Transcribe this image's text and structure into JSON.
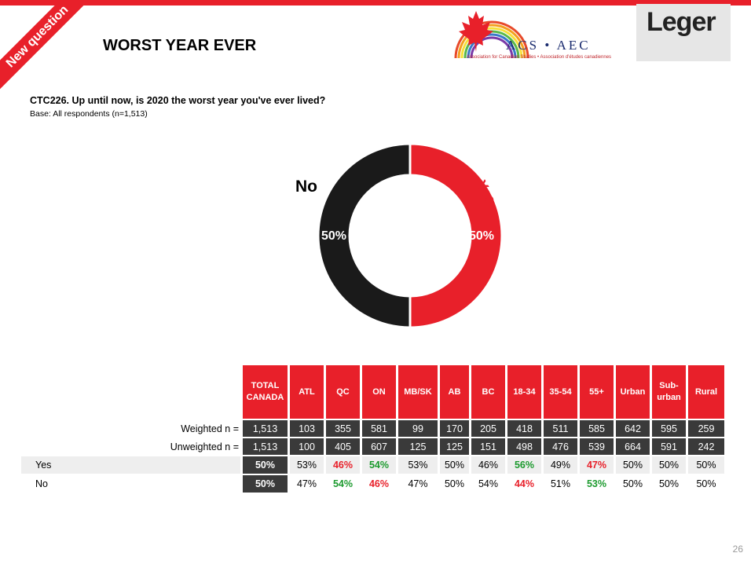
{
  "header": {
    "ribbon": "New question",
    "title": "WORST YEAR EVER",
    "acs_logo_text": "ACS • AEC",
    "acs_logo_sub": "Association for Canadian Studies • Association d'études canadiennes",
    "leger_logo": "Leger"
  },
  "question": "CTC226. Up until now, is 2020 the worst year you've ever lived?",
  "base": "Base: All respondents  (n=1,513)",
  "colors": {
    "accent": "#e8202a",
    "dark": "#1a1a1a",
    "green": "#1c9a2e"
  },
  "chart_data": {
    "type": "pie",
    "donut": true,
    "slices": [
      {
        "name": "Yes",
        "value": 50,
        "color": "#e8202a"
      },
      {
        "name": "No",
        "value": 50,
        "color": "#1a1a1a"
      }
    ],
    "labels": {
      "yes": "Yes",
      "no": "No",
      "yes_pct": "50%",
      "no_pct": "50%"
    }
  },
  "table": {
    "columns": [
      "TOTAL CANADA",
      "ATL",
      "QC",
      "ON",
      "MB/SK",
      "AB",
      "BC",
      "18-34",
      "35-54",
      "55+",
      "Urban",
      "Sub- urban",
      "Rural"
    ],
    "weighted_label": "Weighted n =",
    "unweighted_label": "Unweighted n =",
    "weighted": [
      "1,513",
      "103",
      "355",
      "581",
      "99",
      "170",
      "205",
      "418",
      "511",
      "585",
      "642",
      "595",
      "259"
    ],
    "unweighted": [
      "1,513",
      "100",
      "405",
      "607",
      "125",
      "125",
      "151",
      "498",
      "476",
      "539",
      "664",
      "591",
      "242"
    ],
    "rows": [
      {
        "label": "Yes",
        "values": [
          "50%",
          "53%",
          "46%",
          "54%",
          "53%",
          "50%",
          "46%",
          "56%",
          "49%",
          "47%",
          "50%",
          "50%",
          "50%"
        ],
        "sig": [
          "",
          "",
          "down",
          "up",
          "",
          "",
          "",
          "up",
          "",
          "down",
          "",
          "",
          ""
        ]
      },
      {
        "label": "No",
        "values": [
          "50%",
          "47%",
          "54%",
          "46%",
          "47%",
          "50%",
          "54%",
          "44%",
          "51%",
          "53%",
          "50%",
          "50%",
          "50%"
        ],
        "sig": [
          "",
          "",
          "up",
          "down",
          "",
          "",
          "",
          "down",
          "",
          "up",
          "",
          "",
          ""
        ]
      }
    ]
  },
  "page_number": "26"
}
